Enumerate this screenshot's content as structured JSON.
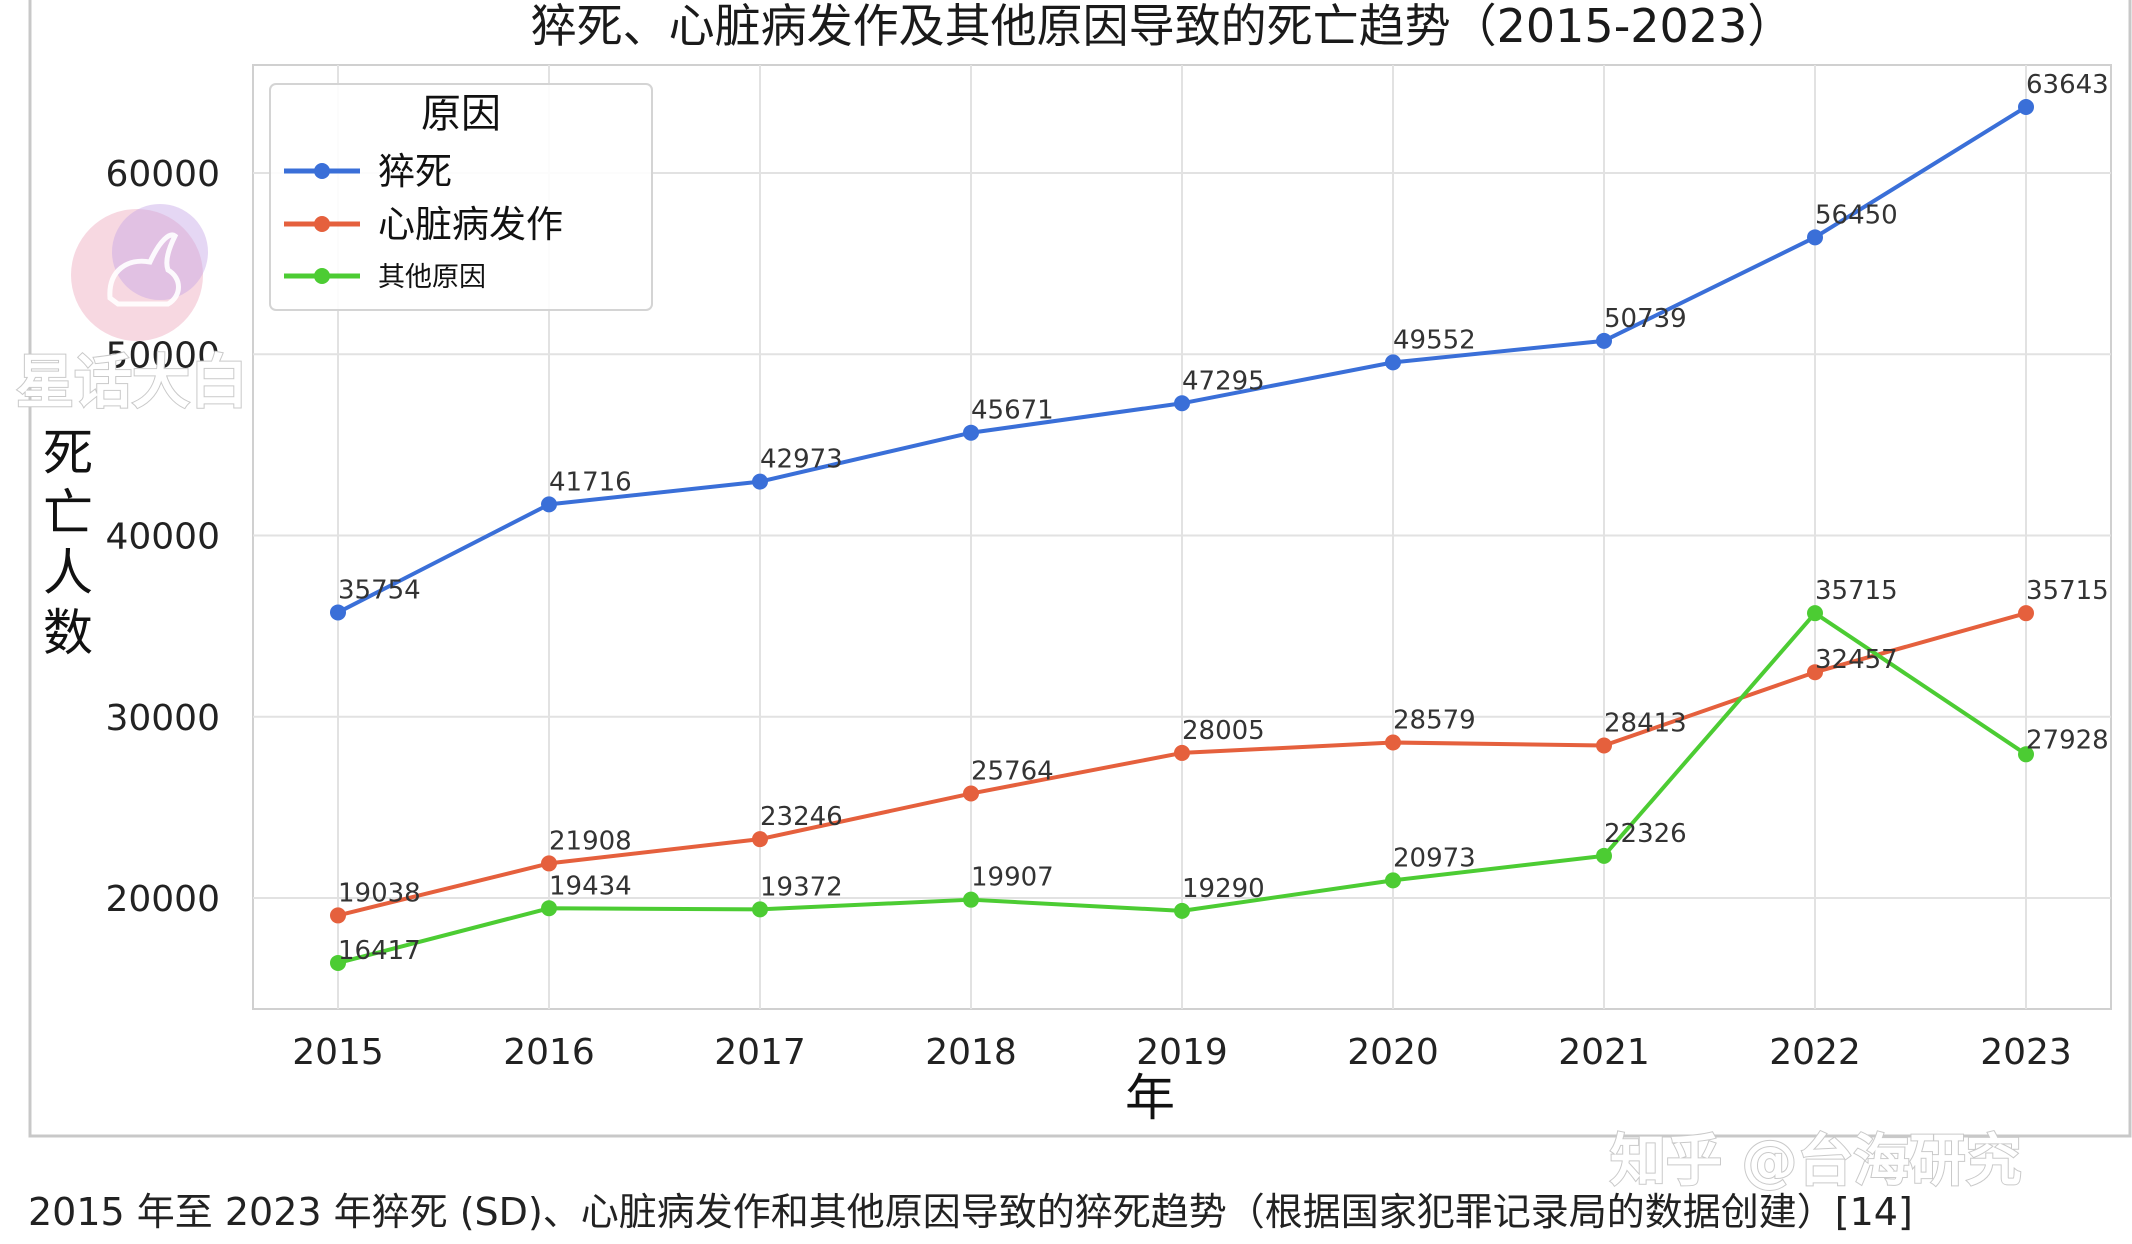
{
  "chart_data": {
    "type": "line",
    "title": "猝死、心脏病发作及其他原因导致的死亡趋势（2015-2023）",
    "xlabel": "年",
    "ylabel": "死亡人数",
    "x": [
      2015,
      2016,
      2017,
      2018,
      2019,
      2020,
      2021,
      2022,
      2023
    ],
    "x_tick_labels": [
      "2015",
      "2016",
      "2017",
      "2018",
      "2019",
      "2020",
      "2021",
      "2022",
      "2023"
    ],
    "y_ticks": [
      20000,
      30000,
      40000,
      50000,
      60000
    ],
    "y_tick_labels": [
      "20000",
      "30000",
      "40000",
      "50000",
      "60000"
    ],
    "ylim": [
      14000,
      66000
    ],
    "grid": true,
    "legend": {
      "title": "原因",
      "placement": "top-left"
    },
    "series": [
      {
        "name": "猝死",
        "color": "#3a6fd8",
        "values": [
          35754,
          41716,
          42973,
          45671,
          47295,
          49552,
          50739,
          56450,
          63643
        ],
        "labels": [
          "35754",
          "41716",
          "42973",
          "45671",
          "47295",
          "49552",
          "50739",
          "56450",
          "63643"
        ]
      },
      {
        "name": "心脏病发作",
        "color": "#e5603d",
        "values": [
          19038,
          21908,
          23246,
          25764,
          28005,
          28579,
          28413,
          32457,
          35715
        ],
        "labels": [
          "19038",
          "21908",
          "23246",
          "25764",
          "28005",
          "28579",
          "28413",
          "32457",
          "35715"
        ]
      },
      {
        "name": "其他原因",
        "color": "#4ccc33",
        "values": [
          16417,
          19434,
          19372,
          19907,
          19290,
          20973,
          22326,
          35715,
          27928
        ],
        "labels": [
          "16417",
          "19434",
          "19372",
          "19907",
          "19290",
          "20973",
          "22326",
          "35715",
          "27928"
        ]
      }
    ]
  },
  "caption": "2015 年至 2023 年猝死 (SD)、心脏病发作和其他原因导致的猝死趋势（根据国家犯罪记录局的数据创建）[14]",
  "watermarks": {
    "top_left": "星话大白",
    "bottom_right": "知乎 @台海研究"
  }
}
